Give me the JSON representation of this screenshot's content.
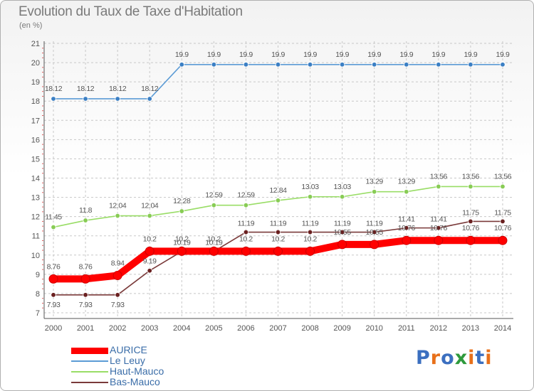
{
  "title": "Evolution du Taux de Taxe d'Habitation",
  "subtitle": "(en %)",
  "brand": [
    "P",
    "r",
    "o",
    "x",
    "i",
    "t",
    "i"
  ],
  "brand_colors": [
    "#3b6fc0",
    "#e8701a",
    "#3b6fc0",
    "#2e9a3c",
    "#e8701a",
    "#3b6fc0",
    "#e8701a"
  ],
  "chart_data": {
    "type": "line",
    "title": "Evolution du Taux de Taxe d'Habitation",
    "ylabel": "(en %)",
    "xlabel": "",
    "x": [
      "2000",
      "2001",
      "2002",
      "2003",
      "2004",
      "2005",
      "2006",
      "2007",
      "2008",
      "2009",
      "2010",
      "2011",
      "2012",
      "2013",
      "2014"
    ],
    "ylim": [
      7,
      21
    ],
    "yticks": [
      "7",
      "8",
      "9",
      "10",
      "11",
      "12",
      "13",
      "14",
      "15",
      "16",
      "17",
      "18",
      "19",
      "20",
      "21"
    ],
    "grid": "dashed-horizontal",
    "legend_position": "bottom-left",
    "series": [
      {
        "name": "AURICE",
        "color": "#ff0000",
        "values": [
          8.76,
          8.76,
          8.94,
          10.2,
          10.2,
          10.2,
          10.2,
          10.2,
          10.2,
          10.55,
          10.55,
          10.76,
          10.76,
          10.76,
          10.76
        ],
        "labels": [
          "8.76",
          "8.76",
          "8.94",
          "10.2",
          "10.2",
          "10.2",
          "10.2",
          "10.2",
          "10.2",
          "10.55",
          "10.55",
          "10.76",
          "10.76",
          "10.76",
          "10.76"
        ]
      },
      {
        "name": "Le Leuy",
        "color": "#5b9bd5",
        "values": [
          18.12,
          18.12,
          18.12,
          18.12,
          19.9,
          19.9,
          19.9,
          19.9,
          19.9,
          19.9,
          19.9,
          19.9,
          19.9,
          19.9,
          19.9
        ],
        "labels": [
          "18.12",
          "18.12",
          "18.12",
          "18.12",
          "19.9",
          "19.9",
          "19.9",
          "19.9",
          "19.9",
          "19.9",
          "19.9",
          "19.9",
          "19.9",
          "19.9",
          "19.9"
        ]
      },
      {
        "name": "Haut-Mauco",
        "color": "#99dd66",
        "values": [
          11.45,
          11.8,
          12.04,
          12.04,
          12.28,
          12.59,
          12.59,
          12.84,
          13.03,
          13.03,
          13.29,
          13.29,
          13.56,
          13.56,
          13.56
        ],
        "labels": [
          "11.45",
          "11.8",
          "12.04",
          "12.04",
          "12.28",
          "12.59",
          "12.59",
          "12.84",
          "13.03",
          "13.03",
          "13.29",
          "13.29",
          "13.56",
          "13.56",
          "13.56"
        ]
      },
      {
        "name": "Bas-Mauco",
        "color": "#7a3a3a",
        "values": [
          7.93,
          7.93,
          7.93,
          9.19,
          10.19,
          10.19,
          11.19,
          11.19,
          11.19,
          11.19,
          11.19,
          11.41,
          11.41,
          11.75,
          11.75
        ],
        "labels": [
          "7.93",
          "7.93",
          "7.93",
          "9.19",
          "10.19",
          "10.19",
          "11.19",
          "11.19",
          "11.19",
          "11.19",
          "11.19",
          "11.41",
          "11.41",
          "11.75",
          "11.75"
        ]
      }
    ]
  }
}
